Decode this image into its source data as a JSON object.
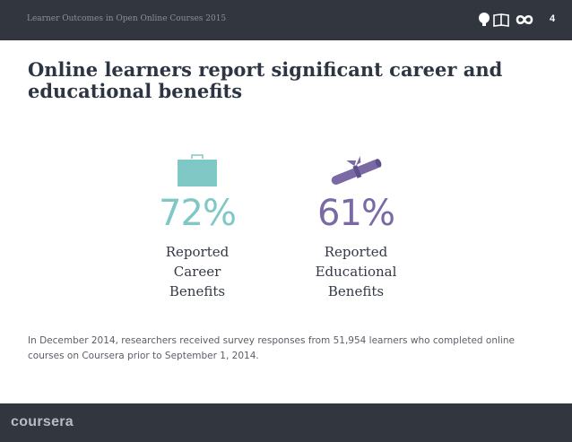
{
  "header": {
    "title": "Learner Outcomes in Open Online Courses 2015",
    "page_number": "4",
    "icons": [
      "lightbulb-icon",
      "open-book-icon",
      "infinity-icon"
    ]
  },
  "slide": {
    "title": "Online learners report significant career and educational benefits"
  },
  "stats": {
    "career": {
      "value": "72%",
      "label_lines": [
        "Reported",
        "Career",
        "Benefits"
      ],
      "icon": "briefcase-icon",
      "color": "#7fc8c5"
    },
    "educational": {
      "value": "61%",
      "label_lines": [
        "Reported",
        "Educational",
        "Benefits"
      ],
      "icon": "diploma-icon",
      "color": "#7a69a5"
    }
  },
  "footnote": "In December 2014, researchers received survey responses from 51,954 learners who completed online courses on Coursera prior to September 1, 2014.",
  "footer": {
    "brand": "coursera"
  },
  "colors": {
    "bar_background": "#32373f",
    "title_text": "#2d3542"
  }
}
